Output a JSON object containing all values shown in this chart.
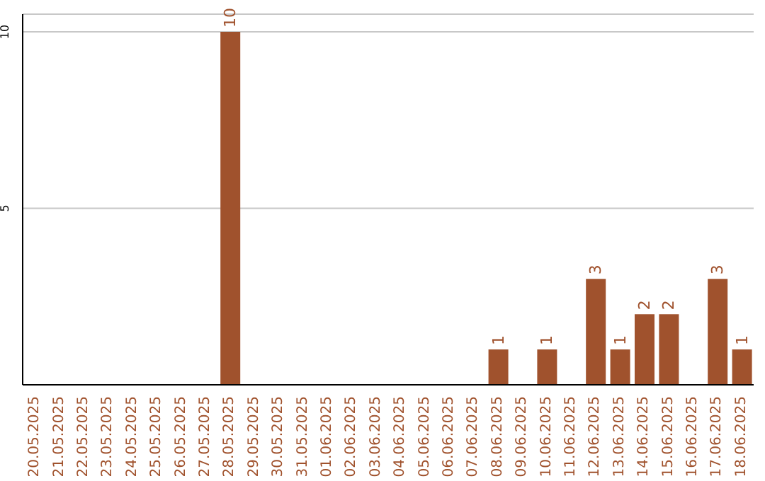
{
  "chart_data": {
    "type": "bar",
    "categories": [
      "20.05.2025",
      "21.05.2025",
      "22.05.2025",
      "23.05.2025",
      "24.05.2025",
      "25.05.2025",
      "26.05.2025",
      "27.05.2025",
      "28.05.2025",
      "29.05.2025",
      "30.05.2025",
      "31.05.2025",
      "01.06.2025",
      "02.06.2025",
      "03.06.2025",
      "04.06.2025",
      "05.06.2025",
      "06.06.2025",
      "07.06.2025",
      "08.06.2025",
      "09.06.2025",
      "10.06.2025",
      "11.06.2025",
      "12.06.2025",
      "13.06.2025",
      "14.06.2025",
      "15.06.2025",
      "16.06.2025",
      "17.06.2025",
      "18.06.2025"
    ],
    "values": [
      0,
      0,
      0,
      0,
      0,
      0,
      0,
      0,
      10,
      0,
      0,
      0,
      0,
      0,
      0,
      0,
      0,
      0,
      0,
      1,
      0,
      1,
      0,
      3,
      1,
      2,
      2,
      0,
      3,
      1
    ],
    "value_labels": [
      null,
      null,
      null,
      null,
      null,
      null,
      null,
      null,
      "10",
      null,
      null,
      null,
      null,
      null,
      null,
      null,
      null,
      null,
      null,
      "1",
      null,
      "1",
      null,
      "3",
      "1",
      "2",
      "2",
      null,
      "3",
      "1"
    ],
    "color": "#a0522d",
    "ylim": [
      0,
      10.5
    ],
    "yticks": [
      5,
      10
    ],
    "grid": "y"
  }
}
